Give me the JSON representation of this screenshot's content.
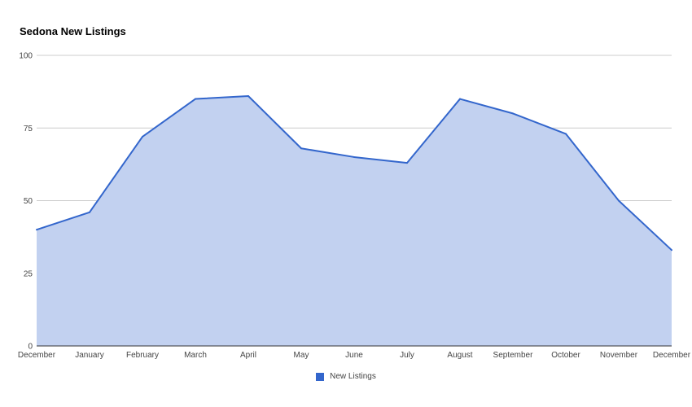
{
  "chart_data": {
    "type": "area",
    "title": "Sedona New Listings",
    "xlabel": "",
    "ylabel": "",
    "categories": [
      "December",
      "January",
      "February",
      "March",
      "April",
      "May",
      "June",
      "July",
      "August",
      "September",
      "October",
      "November",
      "December"
    ],
    "series": [
      {
        "name": "New Listings",
        "values": [
          40,
          46,
          72,
          85,
          86,
          68,
          65,
          63,
          85,
          80,
          73,
          50,
          33
        ]
      }
    ],
    "ylim": [
      0,
      100
    ],
    "yticks": [
      0,
      25,
      50,
      75,
      100
    ],
    "grid": true,
    "legend_position": "bottom",
    "colors": {
      "line": "#3366cc",
      "fill": "#c2d1f0",
      "grid": "#cccccc",
      "axis": "#333333"
    }
  }
}
